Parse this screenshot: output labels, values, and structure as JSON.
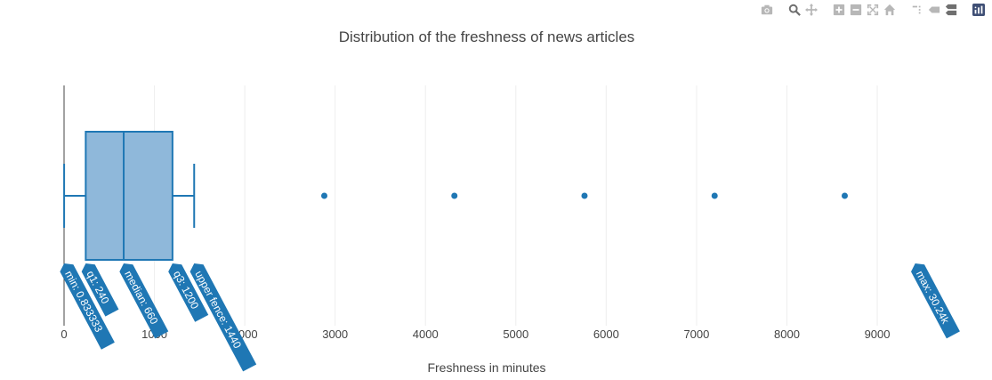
{
  "toolbar": {
    "icons": [
      "camera-icon",
      "zoom-icon",
      "pan-icon",
      "zoom-in-icon",
      "zoom-out-icon",
      "autoscale-icon",
      "reset-axes-icon",
      "spike-lines-icon",
      "hover-closest-icon",
      "hover-compare-icon",
      "plotly-logo-icon"
    ],
    "colors": {
      "icon": "#b7b7b7",
      "active": "#6f6f6f",
      "logo": "#3f4f75"
    }
  },
  "chart_data": {
    "type": "box",
    "title": "Distribution of the freshness of news articles",
    "xlabel": "Freshness in minutes",
    "xlim": [
      0,
      9800
    ],
    "xticks": [
      0,
      1000,
      2000,
      3000,
      4000,
      5000,
      6000,
      7000,
      8000,
      9000
    ],
    "xtick_labels": [
      "0",
      "1000",
      "2000",
      "3000",
      "4000",
      "5000",
      "6000",
      "7000",
      "8000",
      "9000"
    ],
    "grid": true,
    "orientation": "horizontal",
    "box": {
      "min": 0.833333,
      "q1": 240,
      "median": 660,
      "q3": 1200,
      "upper_fence": 1440,
      "max": 30240
    },
    "outliers": [
      2880,
      4320,
      5760,
      7200,
      8640
    ],
    "hover_labels": [
      {
        "key": "min",
        "text": "min: 0.833333",
        "x": 0.833333
      },
      {
        "key": "q1",
        "text": "q1: 240",
        "x": 240
      },
      {
        "key": "median",
        "text": "median: 660",
        "x": 660
      },
      {
        "key": "q3",
        "text": "q3: 1200",
        "x": 1200
      },
      {
        "key": "upper_fence",
        "text": "upper fence: 1440",
        "x": 1440
      },
      {
        "key": "max",
        "text": "max: 30.24k",
        "x": 9420
      }
    ],
    "colors": {
      "line": "#1f77b4",
      "fill": "#8fb8da",
      "label_bg": "#1f77b4",
      "label_text": "#ffffff",
      "grid": "#eeeeee",
      "text": "#444444"
    }
  }
}
